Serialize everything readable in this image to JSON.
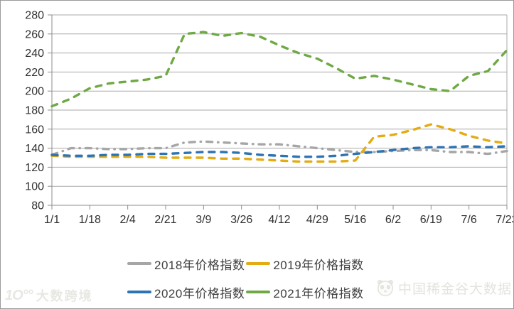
{
  "chart_data": {
    "type": "line",
    "title": "",
    "xlabel": "",
    "ylabel": "",
    "ylim": [
      80,
      280
    ],
    "y_ticks": [
      280,
      260,
      240,
      220,
      200,
      180,
      160,
      140,
      120,
      100,
      80
    ],
    "x_tick_labels": [
      "1/1",
      "1/18",
      "2/4",
      "2/21",
      "3/9",
      "3/26",
      "4/12",
      "4/29",
      "5/16",
      "6/2",
      "6/19",
      "7/6",
      "7/23"
    ],
    "grid": true,
    "legend_position": "bottom",
    "note": "25 evenly spaced points per series; x tick labels sit at every 2nd point",
    "series": [
      {
        "name": "2018年价格指数",
        "color": "#A6A6A6",
        "dash": "dashdot",
        "values": [
          133,
          140,
          140,
          139,
          139,
          140,
          140,
          146,
          147,
          146,
          145,
          144,
          144,
          142,
          140,
          138,
          136,
          136,
          137,
          138,
          138,
          136,
          136,
          134,
          137
        ]
      },
      {
        "name": "2019年价格指数",
        "color": "#E3AC12",
        "dash": "dash",
        "values": [
          132,
          131,
          131,
          131,
          131,
          131,
          130,
          130,
          130,
          129,
          129,
          128,
          127,
          126,
          126,
          126,
          127,
          152,
          154,
          159,
          165,
          160,
          153,
          148,
          145
        ]
      },
      {
        "name": "2020年价格指数",
        "color": "#2E74B5",
        "dash": "dash",
        "values": [
          133,
          132,
          132,
          133,
          133,
          134,
          134,
          135,
          136,
          136,
          135,
          133,
          132,
          131,
          131,
          132,
          134,
          136,
          138,
          140,
          141,
          141,
          142,
          141,
          142
        ]
      },
      {
        "name": "2021年价格指数",
        "color": "#6FA945",
        "dash": "dash",
        "values": [
          184,
          192,
          203,
          208,
          210,
          212,
          216,
          260,
          262,
          258,
          261,
          257,
          248,
          240,
          234,
          224,
          213,
          216,
          212,
          207,
          202,
          200,
          216,
          221,
          243
        ]
      }
    ]
  },
  "legend": {
    "items": [
      {
        "label": "2018年价格指数",
        "color": "#A6A6A6"
      },
      {
        "label": "2019年价格指数",
        "color": "#E3AC12"
      },
      {
        "label": "2020年价格指数",
        "color": "#2E74B5"
      },
      {
        "label": "2021年价格指数",
        "color": "#6FA945"
      }
    ]
  },
  "watermarks": {
    "bottom_left": {
      "logo": "1O°°",
      "text": "大数跨境"
    },
    "bottom_right": {
      "text": "中国稀金谷大数据"
    }
  }
}
